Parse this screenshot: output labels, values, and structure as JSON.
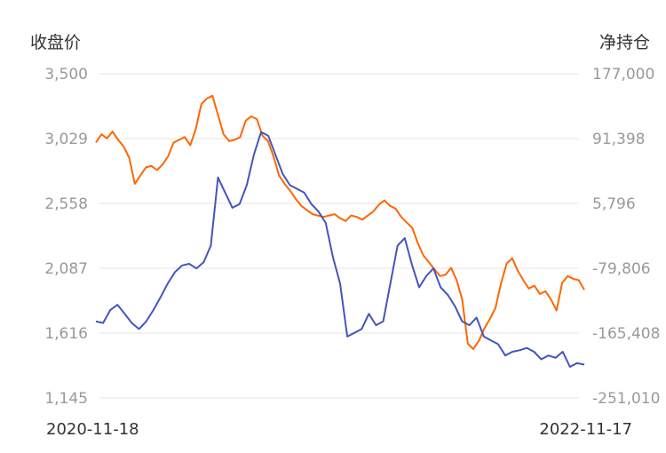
{
  "chart_data": {
    "type": "line",
    "ylabel_left": "收盘价",
    "ylabel_right": "净持仓",
    "x_start_label": "2020-11-18",
    "x_end_label": "2022-11-17",
    "left_ticks": [
      "3,500",
      "3,029",
      "2,558",
      "2,087",
      "1,616",
      "1,145"
    ],
    "right_ticks": [
      "177,000",
      "91,398",
      "5,796",
      "-79,806",
      "-165,408",
      "-251,010"
    ],
    "left_range": [
      1145,
      3500
    ],
    "right_range": [
      -251010,
      177000
    ],
    "grid": true,
    "series": [
      {
        "axis": "left",
        "color": "#ff6600",
        "values": [
          3000,
          3060,
          3030,
          3080,
          3020,
          2970,
          2890,
          2700,
          2760,
          2820,
          2830,
          2800,
          2840,
          2900,
          3000,
          3020,
          3040,
          2980,
          3100,
          3280,
          3320,
          3340,
          3200,
          3060,
          3010,
          3020,
          3040,
          3160,
          3190,
          3170,
          3050,
          3010,
          2900,
          2760,
          2700,
          2650,
          2590,
          2540,
          2510,
          2480,
          2470,
          2460,
          2470,
          2480,
          2450,
          2430,
          2470,
          2460,
          2440,
          2470,
          2500,
          2550,
          2580,
          2540,
          2520,
          2460,
          2420,
          2380,
          2270,
          2180,
          2130,
          2080,
          2030,
          2040,
          2090,
          2000,
          1860,
          1540,
          1500,
          1560,
          1650,
          1720,
          1800,
          1980,
          2120,
          2160,
          2070,
          2000,
          1940,
          1960,
          1900,
          1920,
          1860,
          1780,
          1980,
          2030,
          2010,
          2000,
          1930
        ]
      },
      {
        "axis": "right",
        "color": "#4455bb",
        "values": [
          -150000,
          -152000,
          -135000,
          -128000,
          -140000,
          -152000,
          -160000,
          -150000,
          -135000,
          -118000,
          -100000,
          -85000,
          -76000,
          -74000,
          -80000,
          -72000,
          -50000,
          40000,
          20000,
          0,
          5000,
          30000,
          70000,
          100000,
          95000,
          70000,
          45000,
          30000,
          25000,
          20000,
          5000,
          -5000,
          -20000,
          -65000,
          -100000,
          -170000,
          -165000,
          -160000,
          -140000,
          -155000,
          -150000,
          -100000,
          -50000,
          -40000,
          -75000,
          -105000,
          -90000,
          -80000,
          -105000,
          -115000,
          -130000,
          -150000,
          -155000,
          -145000,
          -170000,
          -175000,
          -180000,
          -195000,
          -190000,
          -188000,
          -185000,
          -190000,
          -200000,
          -195000,
          -198000,
          -190000,
          -210000,
          -205000,
          -207000
        ]
      }
    ]
  }
}
